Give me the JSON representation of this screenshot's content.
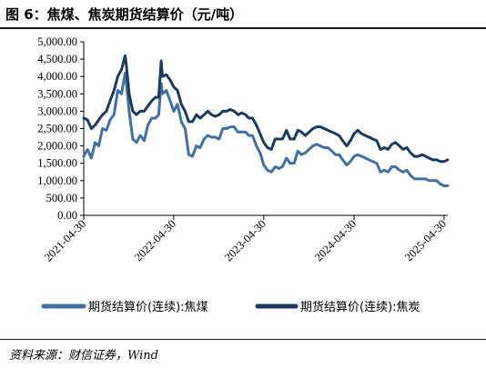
{
  "title": "图 6：焦煤、焦炭期货结算价（元/吨）",
  "source": "资料来源：财信证券，Wind",
  "chart_data": {
    "type": "line",
    "ylim": [
      0,
      5000
    ],
    "y_ticks": [
      "0.00",
      "500.00",
      "1,000.00",
      "1,500.00",
      "2,000.00",
      "2,500.00",
      "3,000.00",
      "3,500.00",
      "4,000.00",
      "4,500.00",
      "5,000.00"
    ],
    "x_ticks": [
      "2021-04-30",
      "2022-04-30",
      "2023-04-30",
      "2024-04-30",
      "2025-04-30"
    ],
    "x_range": [
      "2021-04-30",
      "2025-05-15"
    ],
    "legend_position": "bottom",
    "colors": {
      "coking_coal": "#4270a4",
      "coke": "#1c3a5e",
      "axis": "#000000"
    },
    "series": [
      {
        "name": "期货结算价(连续):焦煤",
        "color": "#4270a4",
        "points": [
          [
            "2021-04-30",
            1700
          ],
          [
            "2021-05-15",
            1900
          ],
          [
            "2021-05-31",
            1650
          ],
          [
            "2021-06-15",
            2100
          ],
          [
            "2021-06-30",
            2000
          ],
          [
            "2021-07-15",
            2500
          ],
          [
            "2021-07-31",
            2450
          ],
          [
            "2021-08-15",
            2750
          ],
          [
            "2021-08-31",
            2900
          ],
          [
            "2021-09-15",
            3600
          ],
          [
            "2021-09-30",
            3500
          ],
          [
            "2021-10-15",
            4100
          ],
          [
            "2021-10-20",
            3800
          ],
          [
            "2021-10-31",
            3000
          ],
          [
            "2021-11-15",
            2200
          ],
          [
            "2021-11-30",
            2100
          ],
          [
            "2021-12-15",
            2300
          ],
          [
            "2021-12-31",
            2150
          ],
          [
            "2022-01-15",
            2600
          ],
          [
            "2022-01-31",
            2800
          ],
          [
            "2022-02-15",
            2800
          ],
          [
            "2022-02-28",
            2900
          ],
          [
            "2022-03-10",
            3800
          ],
          [
            "2022-03-15",
            3500
          ],
          [
            "2022-03-31",
            3600
          ],
          [
            "2022-04-15",
            3300
          ],
          [
            "2022-04-30",
            3000
          ],
          [
            "2022-05-15",
            3200
          ],
          [
            "2022-05-31",
            2700
          ],
          [
            "2022-06-15",
            2500
          ],
          [
            "2022-06-30",
            1750
          ],
          [
            "2022-07-15",
            1700
          ],
          [
            "2022-07-31",
            2000
          ],
          [
            "2022-08-15",
            1950
          ],
          [
            "2022-08-31",
            2200
          ],
          [
            "2022-09-15",
            2300
          ],
          [
            "2022-09-30",
            2250
          ],
          [
            "2022-10-15",
            2250
          ],
          [
            "2022-10-31",
            2200
          ],
          [
            "2022-11-15",
            2500
          ],
          [
            "2022-11-30",
            2500
          ],
          [
            "2022-12-15",
            2550
          ],
          [
            "2022-12-31",
            2550
          ],
          [
            "2023-01-15",
            2400
          ],
          [
            "2023-01-31",
            2400
          ],
          [
            "2023-02-15",
            2400
          ],
          [
            "2023-02-28",
            2300
          ],
          [
            "2023-03-15",
            2300
          ],
          [
            "2023-03-31",
            2000
          ],
          [
            "2023-04-15",
            1800
          ],
          [
            "2023-04-30",
            1450
          ],
          [
            "2023-05-15",
            1300
          ],
          [
            "2023-05-31",
            1250
          ],
          [
            "2023-06-15",
            1400
          ],
          [
            "2023-06-30",
            1350
          ],
          [
            "2023-07-15",
            1400
          ],
          [
            "2023-07-31",
            1650
          ],
          [
            "2023-08-15",
            1500
          ],
          [
            "2023-08-31",
            1500
          ],
          [
            "2023-09-15",
            1850
          ],
          [
            "2023-09-30",
            1750
          ],
          [
            "2023-10-15",
            1800
          ],
          [
            "2023-10-31",
            1900
          ],
          [
            "2023-11-15",
            2000
          ],
          [
            "2023-11-30",
            2050
          ],
          [
            "2023-12-15",
            2000
          ],
          [
            "2023-12-31",
            1950
          ],
          [
            "2024-01-15",
            1950
          ],
          [
            "2024-01-31",
            1850
          ],
          [
            "2024-02-15",
            1750
          ],
          [
            "2024-02-29",
            1750
          ],
          [
            "2024-03-15",
            1600
          ],
          [
            "2024-03-31",
            1450
          ],
          [
            "2024-04-15",
            1550
          ],
          [
            "2024-04-30",
            1700
          ],
          [
            "2024-05-15",
            1750
          ],
          [
            "2024-05-31",
            1700
          ],
          [
            "2024-06-15",
            1650
          ],
          [
            "2024-06-30",
            1600
          ],
          [
            "2024-07-15",
            1550
          ],
          [
            "2024-07-31",
            1500
          ],
          [
            "2024-08-15",
            1250
          ],
          [
            "2024-08-31",
            1300
          ],
          [
            "2024-09-15",
            1250
          ],
          [
            "2024-09-30",
            1400
          ],
          [
            "2024-10-15",
            1400
          ],
          [
            "2024-10-31",
            1300
          ],
          [
            "2024-11-15",
            1250
          ],
          [
            "2024-11-30",
            1300
          ],
          [
            "2024-12-15",
            1150
          ],
          [
            "2024-12-31",
            1050
          ],
          [
            "2025-01-15",
            1050
          ],
          [
            "2025-01-31",
            1050
          ],
          [
            "2025-02-15",
            1050
          ],
          [
            "2025-02-28",
            1000
          ],
          [
            "2025-03-15",
            1000
          ],
          [
            "2025-03-31",
            1000
          ],
          [
            "2025-04-15",
            900
          ],
          [
            "2025-04-30",
            850
          ],
          [
            "2025-05-15",
            850
          ]
        ]
      },
      {
        "name": "期货结算价(连续):焦炭",
        "color": "#1c3a5e",
        "points": [
          [
            "2021-04-30",
            2800
          ],
          [
            "2021-05-15",
            2750
          ],
          [
            "2021-05-31",
            2500
          ],
          [
            "2021-06-15",
            2600
          ],
          [
            "2021-06-30",
            2750
          ],
          [
            "2021-07-15",
            2900
          ],
          [
            "2021-07-31",
            3000
          ],
          [
            "2021-08-15",
            3300
          ],
          [
            "2021-08-31",
            3600
          ],
          [
            "2021-09-15",
            4000
          ],
          [
            "2021-09-30",
            4200
          ],
          [
            "2021-10-15",
            4600
          ],
          [
            "2021-10-20",
            4300
          ],
          [
            "2021-10-31",
            3500
          ],
          [
            "2021-11-15",
            3000
          ],
          [
            "2021-11-30",
            2900
          ],
          [
            "2021-12-15",
            3000
          ],
          [
            "2021-12-31",
            3000
          ],
          [
            "2022-01-15",
            3150
          ],
          [
            "2022-01-31",
            3300
          ],
          [
            "2022-02-15",
            3400
          ],
          [
            "2022-02-28",
            3400
          ],
          [
            "2022-03-10",
            4450
          ],
          [
            "2022-03-15",
            4000
          ],
          [
            "2022-03-31",
            4050
          ],
          [
            "2022-04-15",
            3900
          ],
          [
            "2022-04-30",
            3700
          ],
          [
            "2022-05-15",
            3600
          ],
          [
            "2022-05-31",
            3200
          ],
          [
            "2022-06-15",
            3000
          ],
          [
            "2022-06-30",
            2700
          ],
          [
            "2022-07-15",
            2700
          ],
          [
            "2022-07-31",
            2900
          ],
          [
            "2022-08-15",
            2800
          ],
          [
            "2022-08-31",
            2900
          ],
          [
            "2022-09-15",
            3000
          ],
          [
            "2022-09-30",
            2900
          ],
          [
            "2022-10-15",
            2850
          ],
          [
            "2022-10-31",
            2900
          ],
          [
            "2022-11-15",
            3000
          ],
          [
            "2022-11-30",
            3000
          ],
          [
            "2022-12-15",
            3050
          ],
          [
            "2022-12-31",
            3000
          ],
          [
            "2023-01-15",
            2900
          ],
          [
            "2023-01-31",
            2950
          ],
          [
            "2023-02-15",
            2900
          ],
          [
            "2023-02-28",
            2800
          ],
          [
            "2023-03-15",
            2800
          ],
          [
            "2023-03-31",
            2600
          ],
          [
            "2023-04-15",
            2350
          ],
          [
            "2023-04-30",
            2100
          ],
          [
            "2023-05-15",
            1950
          ],
          [
            "2023-05-31",
            1900
          ],
          [
            "2023-06-15",
            2200
          ],
          [
            "2023-06-30",
            2200
          ],
          [
            "2023-07-15",
            2200
          ],
          [
            "2023-07-31",
            2450
          ],
          [
            "2023-08-15",
            2200
          ],
          [
            "2023-08-31",
            2200
          ],
          [
            "2023-09-15",
            2450
          ],
          [
            "2023-09-30",
            2400
          ],
          [
            "2023-10-15",
            2300
          ],
          [
            "2023-10-31",
            2400
          ],
          [
            "2023-11-15",
            2500
          ],
          [
            "2023-11-30",
            2550
          ],
          [
            "2023-12-15",
            2550
          ],
          [
            "2023-12-31",
            2500
          ],
          [
            "2024-01-15",
            2450
          ],
          [
            "2024-01-31",
            2400
          ],
          [
            "2024-02-15",
            2350
          ],
          [
            "2024-02-29",
            2300
          ],
          [
            "2024-03-15",
            2150
          ],
          [
            "2024-03-31",
            2000
          ],
          [
            "2024-04-15",
            2150
          ],
          [
            "2024-04-30",
            2350
          ],
          [
            "2024-05-15",
            2450
          ],
          [
            "2024-05-31",
            2350
          ],
          [
            "2024-06-15",
            2300
          ],
          [
            "2024-06-30",
            2250
          ],
          [
            "2024-07-15",
            2200
          ],
          [
            "2024-07-31",
            2150
          ],
          [
            "2024-08-15",
            1900
          ],
          [
            "2024-08-31",
            1950
          ],
          [
            "2024-09-15",
            1900
          ],
          [
            "2024-09-30",
            2050
          ],
          [
            "2024-10-15",
            2100
          ],
          [
            "2024-10-31",
            2000
          ],
          [
            "2024-11-15",
            1900
          ],
          [
            "2024-11-30",
            1950
          ],
          [
            "2024-12-15",
            1800
          ],
          [
            "2024-12-31",
            1700
          ],
          [
            "2025-01-15",
            1700
          ],
          [
            "2025-01-31",
            1750
          ],
          [
            "2025-02-15",
            1700
          ],
          [
            "2025-02-28",
            1650
          ],
          [
            "2025-03-15",
            1600
          ],
          [
            "2025-03-31",
            1600
          ],
          [
            "2025-04-15",
            1550
          ],
          [
            "2025-04-30",
            1550
          ],
          [
            "2025-05-15",
            1600
          ]
        ]
      }
    ]
  }
}
